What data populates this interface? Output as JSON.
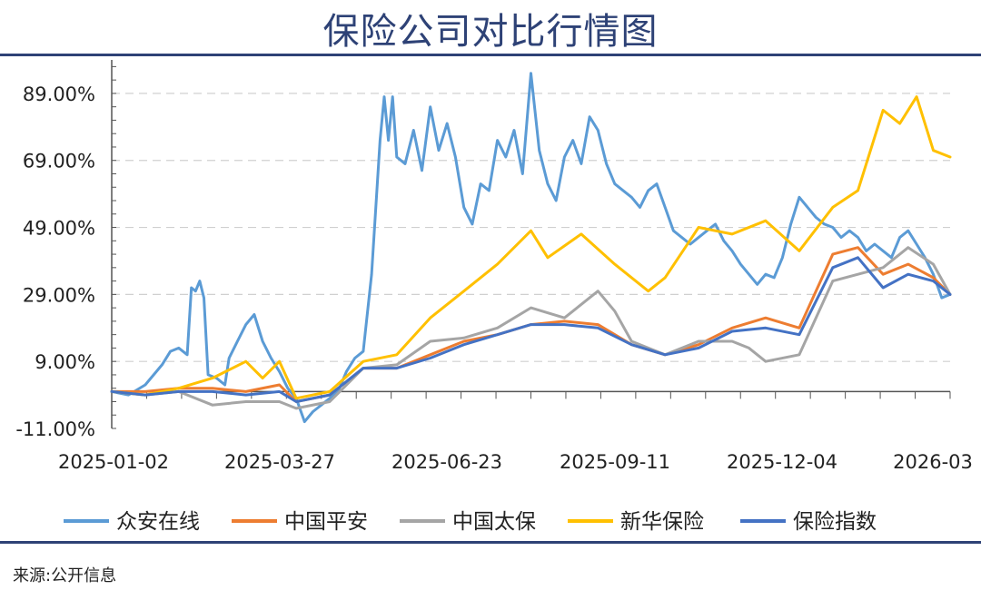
{
  "title": "保险公司对比行情图",
  "source": "来源:公开信息",
  "chart_data": {
    "type": "line",
    "title": "保险公司对比行情图",
    "xlabel": "",
    "ylabel": "",
    "ylim": [
      -11,
      99
    ],
    "y_ticks": [
      -11,
      9,
      29,
      49,
      69,
      89
    ],
    "y_tick_labels": [
      "-11.00%",
      "9.00%",
      "29.00%",
      "49.00%",
      "69.00%",
      "89.00%"
    ],
    "x_tick_labels": [
      "2025-01-02",
      "2025-03-27",
      "2025-06-23",
      "2025-09-11",
      "2025-12-04",
      "2026-03"
    ],
    "x_tick_positions": [
      0,
      0.2,
      0.4,
      0.6,
      0.8,
      1.0
    ],
    "grid": "horizontal-dashed",
    "legend_position": "bottom",
    "series": [
      {
        "name": "众安在线",
        "color": "#5B9BD5",
        "values": [
          [
            0,
            0
          ],
          [
            0.02,
            -1
          ],
          [
            0.04,
            2
          ],
          [
            0.06,
            8
          ],
          [
            0.07,
            12
          ],
          [
            0.08,
            13
          ],
          [
            0.09,
            11
          ],
          [
            0.095,
            31
          ],
          [
            0.1,
            30
          ],
          [
            0.105,
            33
          ],
          [
            0.11,
            28
          ],
          [
            0.115,
            5
          ],
          [
            0.125,
            4
          ],
          [
            0.135,
            2
          ],
          [
            0.14,
            10
          ],
          [
            0.15,
            15
          ],
          [
            0.16,
            20
          ],
          [
            0.17,
            23
          ],
          [
            0.18,
            15
          ],
          [
            0.19,
            10
          ],
          [
            0.2,
            6
          ],
          [
            0.21,
            1
          ],
          [
            0.22,
            -2
          ],
          [
            0.23,
            -9
          ],
          [
            0.24,
            -6
          ],
          [
            0.25,
            -4
          ],
          [
            0.26,
            -2
          ],
          [
            0.27,
            0
          ],
          [
            0.28,
            6
          ],
          [
            0.29,
            10
          ],
          [
            0.3,
            12
          ],
          [
            0.31,
            35
          ],
          [
            0.32,
            75
          ],
          [
            0.325,
            88
          ],
          [
            0.33,
            75
          ],
          [
            0.335,
            88
          ],
          [
            0.34,
            70
          ],
          [
            0.35,
            68
          ],
          [
            0.36,
            78
          ],
          [
            0.37,
            66
          ],
          [
            0.38,
            85
          ],
          [
            0.39,
            72
          ],
          [
            0.4,
            80
          ],
          [
            0.41,
            70
          ],
          [
            0.42,
            55
          ],
          [
            0.43,
            50
          ],
          [
            0.44,
            62
          ],
          [
            0.45,
            60
          ],
          [
            0.46,
            75
          ],
          [
            0.47,
            70
          ],
          [
            0.48,
            78
          ],
          [
            0.49,
            65
          ],
          [
            0.5,
            95
          ],
          [
            0.51,
            72
          ],
          [
            0.52,
            62
          ],
          [
            0.53,
            57
          ],
          [
            0.54,
            70
          ],
          [
            0.55,
            75
          ],
          [
            0.56,
            68
          ],
          [
            0.57,
            82
          ],
          [
            0.58,
            78
          ],
          [
            0.59,
            68
          ],
          [
            0.6,
            62
          ],
          [
            0.61,
            60
          ],
          [
            0.62,
            58
          ],
          [
            0.63,
            55
          ],
          [
            0.64,
            60
          ],
          [
            0.65,
            62
          ],
          [
            0.66,
            55
          ],
          [
            0.67,
            48
          ],
          [
            0.68,
            46
          ],
          [
            0.69,
            44
          ],
          [
            0.7,
            46
          ],
          [
            0.71,
            48
          ],
          [
            0.72,
            50
          ],
          [
            0.73,
            45
          ],
          [
            0.74,
            42
          ],
          [
            0.75,
            38
          ],
          [
            0.76,
            35
          ],
          [
            0.77,
            32
          ],
          [
            0.78,
            35
          ],
          [
            0.79,
            34
          ],
          [
            0.8,
            40
          ],
          [
            0.81,
            50
          ],
          [
            0.82,
            58
          ],
          [
            0.83,
            55
          ],
          [
            0.84,
            52
          ],
          [
            0.85,
            50
          ],
          [
            0.86,
            49
          ],
          [
            0.87,
            46
          ],
          [
            0.88,
            48
          ],
          [
            0.89,
            46
          ],
          [
            0.9,
            42
          ],
          [
            0.91,
            44
          ],
          [
            0.92,
            42
          ],
          [
            0.93,
            40
          ],
          [
            0.94,
            46
          ],
          [
            0.95,
            48
          ],
          [
            0.96,
            44
          ],
          [
            0.97,
            40
          ],
          [
            0.98,
            35
          ],
          [
            0.99,
            28
          ],
          [
            1.0,
            29
          ]
        ]
      },
      {
        "name": "中国平安",
        "color": "#ED7D31",
        "values": [
          [
            0,
            0
          ],
          [
            0.04,
            0
          ],
          [
            0.08,
            1
          ],
          [
            0.12,
            1
          ],
          [
            0.16,
            0
          ],
          [
            0.2,
            2
          ],
          [
            0.22,
            -3
          ],
          [
            0.26,
            -1
          ],
          [
            0.3,
            7
          ],
          [
            0.34,
            7
          ],
          [
            0.38,
            11
          ],
          [
            0.42,
            15
          ],
          [
            0.46,
            17
          ],
          [
            0.5,
            20
          ],
          [
            0.54,
            21
          ],
          [
            0.58,
            20
          ],
          [
            0.62,
            14
          ],
          [
            0.66,
            11
          ],
          [
            0.7,
            14
          ],
          [
            0.74,
            19
          ],
          [
            0.78,
            22
          ],
          [
            0.82,
            19
          ],
          [
            0.86,
            41
          ],
          [
            0.89,
            43
          ],
          [
            0.92,
            35
          ],
          [
            0.95,
            38
          ],
          [
            0.98,
            34
          ],
          [
            1.0,
            29
          ]
        ]
      },
      {
        "name": "中国太保",
        "color": "#A5A5A5",
        "values": [
          [
            0,
            0
          ],
          [
            0.04,
            -1
          ],
          [
            0.08,
            0
          ],
          [
            0.12,
            -4
          ],
          [
            0.16,
            -3
          ],
          [
            0.2,
            -3
          ],
          [
            0.22,
            -5
          ],
          [
            0.26,
            -3
          ],
          [
            0.3,
            7
          ],
          [
            0.34,
            8
          ],
          [
            0.38,
            15
          ],
          [
            0.42,
            16
          ],
          [
            0.46,
            19
          ],
          [
            0.5,
            25
          ],
          [
            0.54,
            22
          ],
          [
            0.58,
            30
          ],
          [
            0.6,
            24
          ],
          [
            0.62,
            15
          ],
          [
            0.66,
            11
          ],
          [
            0.7,
            15
          ],
          [
            0.74,
            15
          ],
          [
            0.76,
            13
          ],
          [
            0.78,
            9
          ],
          [
            0.82,
            11
          ],
          [
            0.86,
            33
          ],
          [
            0.89,
            35
          ],
          [
            0.92,
            37
          ],
          [
            0.95,
            43
          ],
          [
            0.98,
            38
          ],
          [
            1.0,
            29
          ]
        ]
      },
      {
        "name": "新华保险",
        "color": "#FFC000",
        "values": [
          [
            0,
            0
          ],
          [
            0.04,
            -1
          ],
          [
            0.08,
            1
          ],
          [
            0.12,
            4
          ],
          [
            0.16,
            9
          ],
          [
            0.18,
            4
          ],
          [
            0.2,
            9
          ],
          [
            0.22,
            -2
          ],
          [
            0.26,
            0
          ],
          [
            0.3,
            9
          ],
          [
            0.34,
            11
          ],
          [
            0.38,
            22
          ],
          [
            0.42,
            30
          ],
          [
            0.46,
            38
          ],
          [
            0.5,
            48
          ],
          [
            0.52,
            40
          ],
          [
            0.56,
            47
          ],
          [
            0.6,
            38
          ],
          [
            0.64,
            30
          ],
          [
            0.66,
            34
          ],
          [
            0.7,
            49
          ],
          [
            0.74,
            47
          ],
          [
            0.78,
            51
          ],
          [
            0.82,
            42
          ],
          [
            0.86,
            55
          ],
          [
            0.89,
            60
          ],
          [
            0.92,
            84
          ],
          [
            0.94,
            80
          ],
          [
            0.96,
            88
          ],
          [
            0.98,
            72
          ],
          [
            1.0,
            70
          ]
        ]
      },
      {
        "name": "保险指数",
        "color": "#4472C4",
        "values": [
          [
            0,
            0
          ],
          [
            0.04,
            -1
          ],
          [
            0.08,
            0
          ],
          [
            0.12,
            0
          ],
          [
            0.16,
            -1
          ],
          [
            0.2,
            0
          ],
          [
            0.22,
            -3
          ],
          [
            0.26,
            -1
          ],
          [
            0.3,
            7
          ],
          [
            0.34,
            7
          ],
          [
            0.38,
            10
          ],
          [
            0.42,
            14
          ],
          [
            0.46,
            17
          ],
          [
            0.5,
            20
          ],
          [
            0.54,
            20
          ],
          [
            0.58,
            19
          ],
          [
            0.62,
            14
          ],
          [
            0.66,
            11
          ],
          [
            0.7,
            13
          ],
          [
            0.74,
            18
          ],
          [
            0.78,
            19
          ],
          [
            0.82,
            17
          ],
          [
            0.86,
            37
          ],
          [
            0.89,
            40
          ],
          [
            0.92,
            31
          ],
          [
            0.95,
            35
          ],
          [
            0.98,
            33
          ],
          [
            1.0,
            29
          ]
        ]
      }
    ]
  }
}
